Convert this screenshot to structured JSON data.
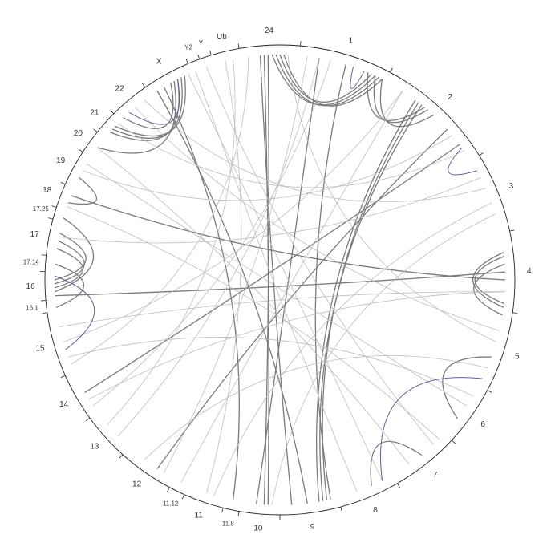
{
  "chart_data": {
    "type": "chord",
    "segments": [
      {
        "name": "1",
        "size": 23
      },
      {
        "name": "2",
        "size": 30
      },
      {
        "name": "3",
        "size": 20
      },
      {
        "name": "4",
        "size": 20
      },
      {
        "name": "5",
        "size": 20
      },
      {
        "name": "6",
        "size": 15
      },
      {
        "name": "7",
        "size": 17
      },
      {
        "name": "8",
        "size": 15
      },
      {
        "name": "9",
        "size": 15
      },
      {
        "name": "10",
        "size": 10
      },
      {
        "name": "11.8",
        "size": 4
      },
      {
        "name": "11",
        "size": 10
      },
      {
        "name": "11.12",
        "size": 4
      },
      {
        "name": "12",
        "size": 14
      },
      {
        "name": "13",
        "size": 12
      },
      {
        "name": "14",
        "size": 12
      },
      {
        "name": "15",
        "size": 16
      },
      {
        "name": "16.1",
        "size": 3
      },
      {
        "name": "16",
        "size": 7
      },
      {
        "name": "17.14",
        "size": 4
      },
      {
        "name": "17",
        "size": 9
      },
      {
        "name": "17.25",
        "size": 3
      },
      {
        "name": "18",
        "size": 6
      },
      {
        "name": "19",
        "size": 9
      },
      {
        "name": "20",
        "size": 6
      },
      {
        "name": "21",
        "size": 6
      },
      {
        "name": "22",
        "size": 10
      },
      {
        "name": "X",
        "size": 12
      },
      {
        "name": "Y2",
        "size": 3
      },
      {
        "name": "Y",
        "size": 3
      },
      {
        "name": "Ub",
        "size": 7
      },
      {
        "name": "24",
        "size": 15
      }
    ],
    "link_groups": [
      {
        "color": "#7a7a7a",
        "width": 1.3,
        "links": [
          [
            0,
            20,
            31,
            8
          ],
          [
            0,
            21,
            31,
            9
          ],
          [
            0,
            19,
            31,
            10
          ],
          [
            0,
            22,
            31,
            11
          ],
          [
            0,
            18,
            1,
            12
          ],
          [
            0,
            20,
            1,
            13
          ],
          [
            0,
            22,
            1,
            15
          ],
          [
            31,
            6,
            9,
            3
          ],
          [
            31,
            7,
            9,
            4
          ],
          [
            31,
            5,
            8,
            12
          ],
          [
            25,
            2,
            27,
            8
          ],
          [
            25,
            3,
            27,
            9
          ],
          [
            25,
            4,
            27,
            10
          ],
          [
            26,
            1,
            27,
            6
          ],
          [
            24,
            3,
            27,
            7
          ],
          [
            20,
            2,
            18,
            3
          ],
          [
            20,
            4,
            18,
            4
          ],
          [
            20,
            6,
            18,
            5
          ],
          [
            19,
            2,
            17,
            1
          ],
          [
            21,
            1,
            18,
            2
          ],
          [
            3,
            18,
            3,
            6
          ],
          [
            3,
            19,
            3,
            5
          ],
          [
            4,
            1,
            3,
            8
          ],
          [
            8,
            3,
            1,
            10
          ],
          [
            8,
            4,
            1,
            11
          ],
          [
            8,
            5,
            1,
            9
          ],
          [
            8,
            2,
            0,
            12
          ],
          [
            23,
            3,
            22,
            2
          ],
          [
            10,
            2,
            27,
            4
          ],
          [
            13,
            5,
            1,
            20
          ],
          [
            18,
            1,
            3,
            10
          ],
          [
            15,
            6,
            1,
            25
          ],
          [
            9,
            6,
            0,
            5
          ],
          [
            22,
            4,
            3,
            12
          ],
          [
            4,
            12,
            5,
            10
          ],
          [
            7,
            6,
            6,
            8
          ],
          [
            27,
            2,
            8,
            8
          ]
        ]
      },
      {
        "color": "#bdbdbd",
        "width": 0.8,
        "links": [
          [
            0,
            2,
            13,
            3
          ],
          [
            0,
            5,
            14,
            4
          ],
          [
            1,
            5,
            16,
            8
          ],
          [
            1,
            22,
            23,
            5
          ],
          [
            2,
            5,
            20,
            5
          ],
          [
            2,
            12,
            11,
            3
          ],
          [
            3,
            15,
            15,
            4
          ],
          [
            4,
            5,
            26,
            5
          ],
          [
            4,
            15,
            13,
            9
          ],
          [
            5,
            6,
            23,
            7
          ],
          [
            6,
            4,
            29,
            1
          ],
          [
            6,
            12,
            24,
            3
          ],
          [
            7,
            10,
            28,
            1
          ],
          [
            9,
            2,
            2,
            15
          ],
          [
            11,
            5,
            30,
            3
          ],
          [
            12,
            2,
            1,
            5
          ],
          [
            14,
            8,
            30,
            5
          ],
          [
            15,
            2,
            0,
            8
          ],
          [
            16,
            4,
            5,
            3
          ],
          [
            16,
            12,
            3,
            15
          ],
          [
            22,
            1,
            6,
            2
          ],
          [
            26,
            8,
            2,
            8
          ],
          [
            27,
            11,
            7,
            3
          ],
          [
            31,
            12,
            4,
            8
          ],
          [
            31,
            2,
            16,
            2
          ],
          [
            25,
            5,
            1,
            27
          ]
        ]
      },
      {
        "color": "#6b5b95",
        "width": 1.0,
        "links": [
          [
            26,
            3,
            27,
            8
          ],
          [
            16,
            6,
            18,
            6
          ],
          [
            0,
            14,
            0,
            17
          ],
          [
            2,
            3,
            1,
            26
          ],
          [
            7,
            3,
            4,
            18
          ]
        ]
      }
    ]
  }
}
